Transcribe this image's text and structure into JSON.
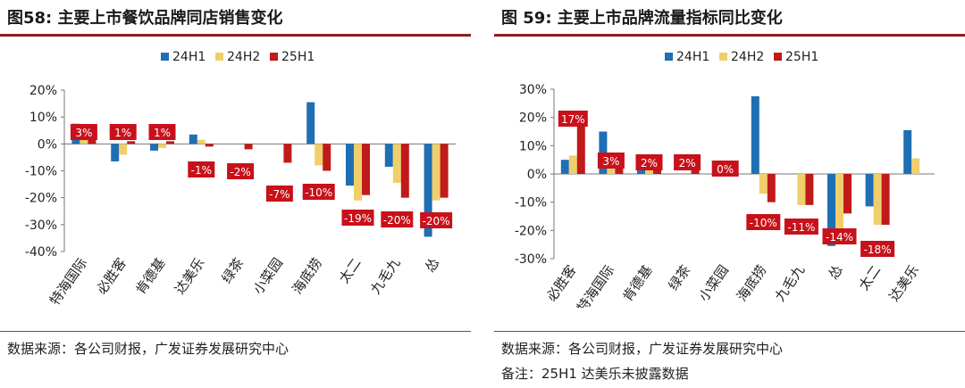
{
  "colors": {
    "s24H1": "#1f6fb4",
    "s24H2": "#f0cf6b",
    "s25H1": "#c01a1a",
    "label_bg": "#c8111a",
    "label_text": "#ffffff",
    "rule": "#8c1f1f"
  },
  "chart_data": [
    {
      "type": "bar",
      "title": "图58:  主要上市餐饮品牌同店销售变化",
      "source": "数据来源：各公司财报，广发证券发展研究中心",
      "categories": [
        "特海国际",
        "必胜客",
        "肯德基",
        "达美乐",
        "绿茶",
        "小菜园",
        "海底捞",
        "太二",
        "九毛九",
        "怂"
      ],
      "series": [
        {
          "name": "24H1",
          "values": [
            7.5,
            -6.5,
            -2.5,
            3.5,
            null,
            null,
            15.5,
            -15.5,
            -8.5,
            -34.5
          ]
        },
        {
          "name": "24H2",
          "values": [
            5,
            -4,
            -1.5,
            1.5,
            null,
            null,
            -8,
            -21,
            -14.5,
            -21
          ]
        },
        {
          "name": "25H1",
          "values": [
            3,
            1,
            1,
            -1,
            -2,
            -7,
            -10,
            -19,
            -20,
            -20
          ]
        }
      ],
      "data_labels": [
        "3%",
        "1%",
        "1%",
        "-1%",
        "-2%",
        "-7%",
        "-10%",
        "-19%",
        "-20%",
        "-20%"
      ],
      "ylim": [
        -40,
        20
      ],
      "yticks": [
        20,
        10,
        0,
        -10,
        -20,
        -30,
        -40
      ],
      "ytick_labels": [
        "20%",
        "10%",
        "0%",
        "-10%",
        "-20%",
        "-30%",
        "-40%"
      ],
      "legend": [
        "24H1",
        "24H2",
        "25H1"
      ]
    },
    {
      "type": "bar",
      "title": "图 59:  主要上市品牌流量指标同比变化",
      "source": "数据来源：各公司财报，广发证券发展研究中心",
      "note": "备注：25H1 达美乐未披露数据",
      "categories": [
        "必胜客",
        "特海国际",
        "肯德基",
        "绿茶",
        "小菜园",
        "海底捞",
        "九毛九",
        "怂",
        "太二",
        "达美乐"
      ],
      "series": [
        {
          "name": "24H1",
          "values": [
            5,
            15,
            4,
            null,
            null,
            27.5,
            null,
            -25.5,
            -11.5,
            15.5
          ]
        },
        {
          "name": "24H2",
          "values": [
            6.5,
            3,
            2,
            null,
            null,
            -7,
            -11,
            -20,
            -18,
            5.5
          ]
        },
        {
          "name": "25H1",
          "values": [
            17,
            3,
            2,
            2,
            0,
            -10,
            -11,
            -14,
            -18,
            null
          ]
        }
      ],
      "data_labels": [
        "17%",
        "3%",
        "2%",
        "2%",
        "0%",
        "-10%",
        "-11%",
        "-14%",
        "-18%",
        ""
      ],
      "ylim": [
        -30,
        30
      ],
      "yticks": [
        30,
        20,
        10,
        0,
        -10,
        -20,
        -30
      ],
      "ytick_labels": [
        "30%",
        "20%",
        "10%",
        "0%",
        "-10%",
        "-20%",
        "-30%"
      ],
      "legend": [
        "24H1",
        "24H2",
        "25H1"
      ]
    }
  ]
}
